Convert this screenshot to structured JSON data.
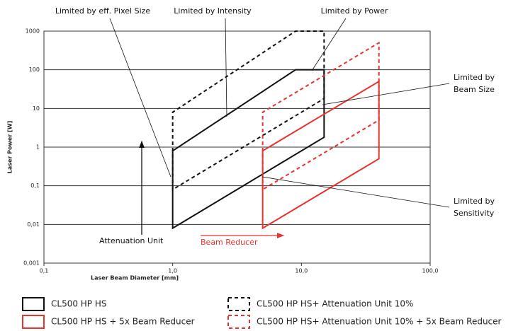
{
  "chart_data": {
    "type": "polygon",
    "x_label": "Laser Beam Diameter [mm]",
    "y_label": "Laser Power [W]",
    "x_log": true,
    "y_log": true,
    "grid": "y",
    "xlim": [
      0.1,
      100
    ],
    "ylim": [
      0.001,
      1000
    ],
    "xticks": [
      {
        "value": 0.1,
        "label": "0,1"
      },
      {
        "value": 1,
        "label": "1,0"
      },
      {
        "value": 10,
        "label": "10,0"
      },
      {
        "value": 100,
        "label": "100,0"
      }
    ],
    "yticks": [
      {
        "value": 0.001,
        "label": "0,001"
      },
      {
        "value": 0.01,
        "label": "0,01"
      },
      {
        "value": 0.1,
        "label": "0,1"
      },
      1,
      10,
      100,
      1000
    ],
    "series": [
      {
        "name": "CL500 HP HS",
        "color": "#111111",
        "dashed": false,
        "x": [
          1,
          1,
          9,
          15,
          15
        ],
        "y": [
          0.008,
          0.8,
          100,
          100,
          1.8
        ]
      },
      {
        "name": "CL500 HP HS+ Attenuation Unit 10%",
        "color": "#111111",
        "dashed": true,
        "x": [
          1,
          1,
          9,
          15,
          15
        ],
        "y": [
          0.08,
          8,
          1000,
          1000,
          18
        ]
      },
      {
        "name": "CL500 HP HS + 5x Beam Reducer",
        "color": "#e8322f",
        "dashed": false,
        "x": [
          5,
          5,
          40,
          40
        ],
        "y": [
          0.008,
          0.8,
          50,
          0.5
        ]
      },
      {
        "name": "CL500 HP HS+ Attenuation Unit 10% + 5x Beam Reducer",
        "color": "#e8322f",
        "dashed": true,
        "x": [
          5,
          5,
          40,
          40
        ],
        "y": [
          0.08,
          8,
          500,
          5
        ]
      }
    ],
    "annotations": [
      {
        "text": [
          "Limited by eff. Pixel Size"
        ]
      },
      {
        "text": [
          "Limited by Intensity"
        ]
      },
      {
        "text": [
          "Limited by Power"
        ]
      },
      {
        "text": [
          "Limited by",
          "Beam Size"
        ]
      },
      {
        "text": [
          "Limited by",
          "Sensitivity"
        ]
      },
      {
        "text": [
          "Attenuation Unit"
        ]
      },
      {
        "text": [
          "Beam Reducer"
        ],
        "color": "#e8322f"
      }
    ]
  }
}
